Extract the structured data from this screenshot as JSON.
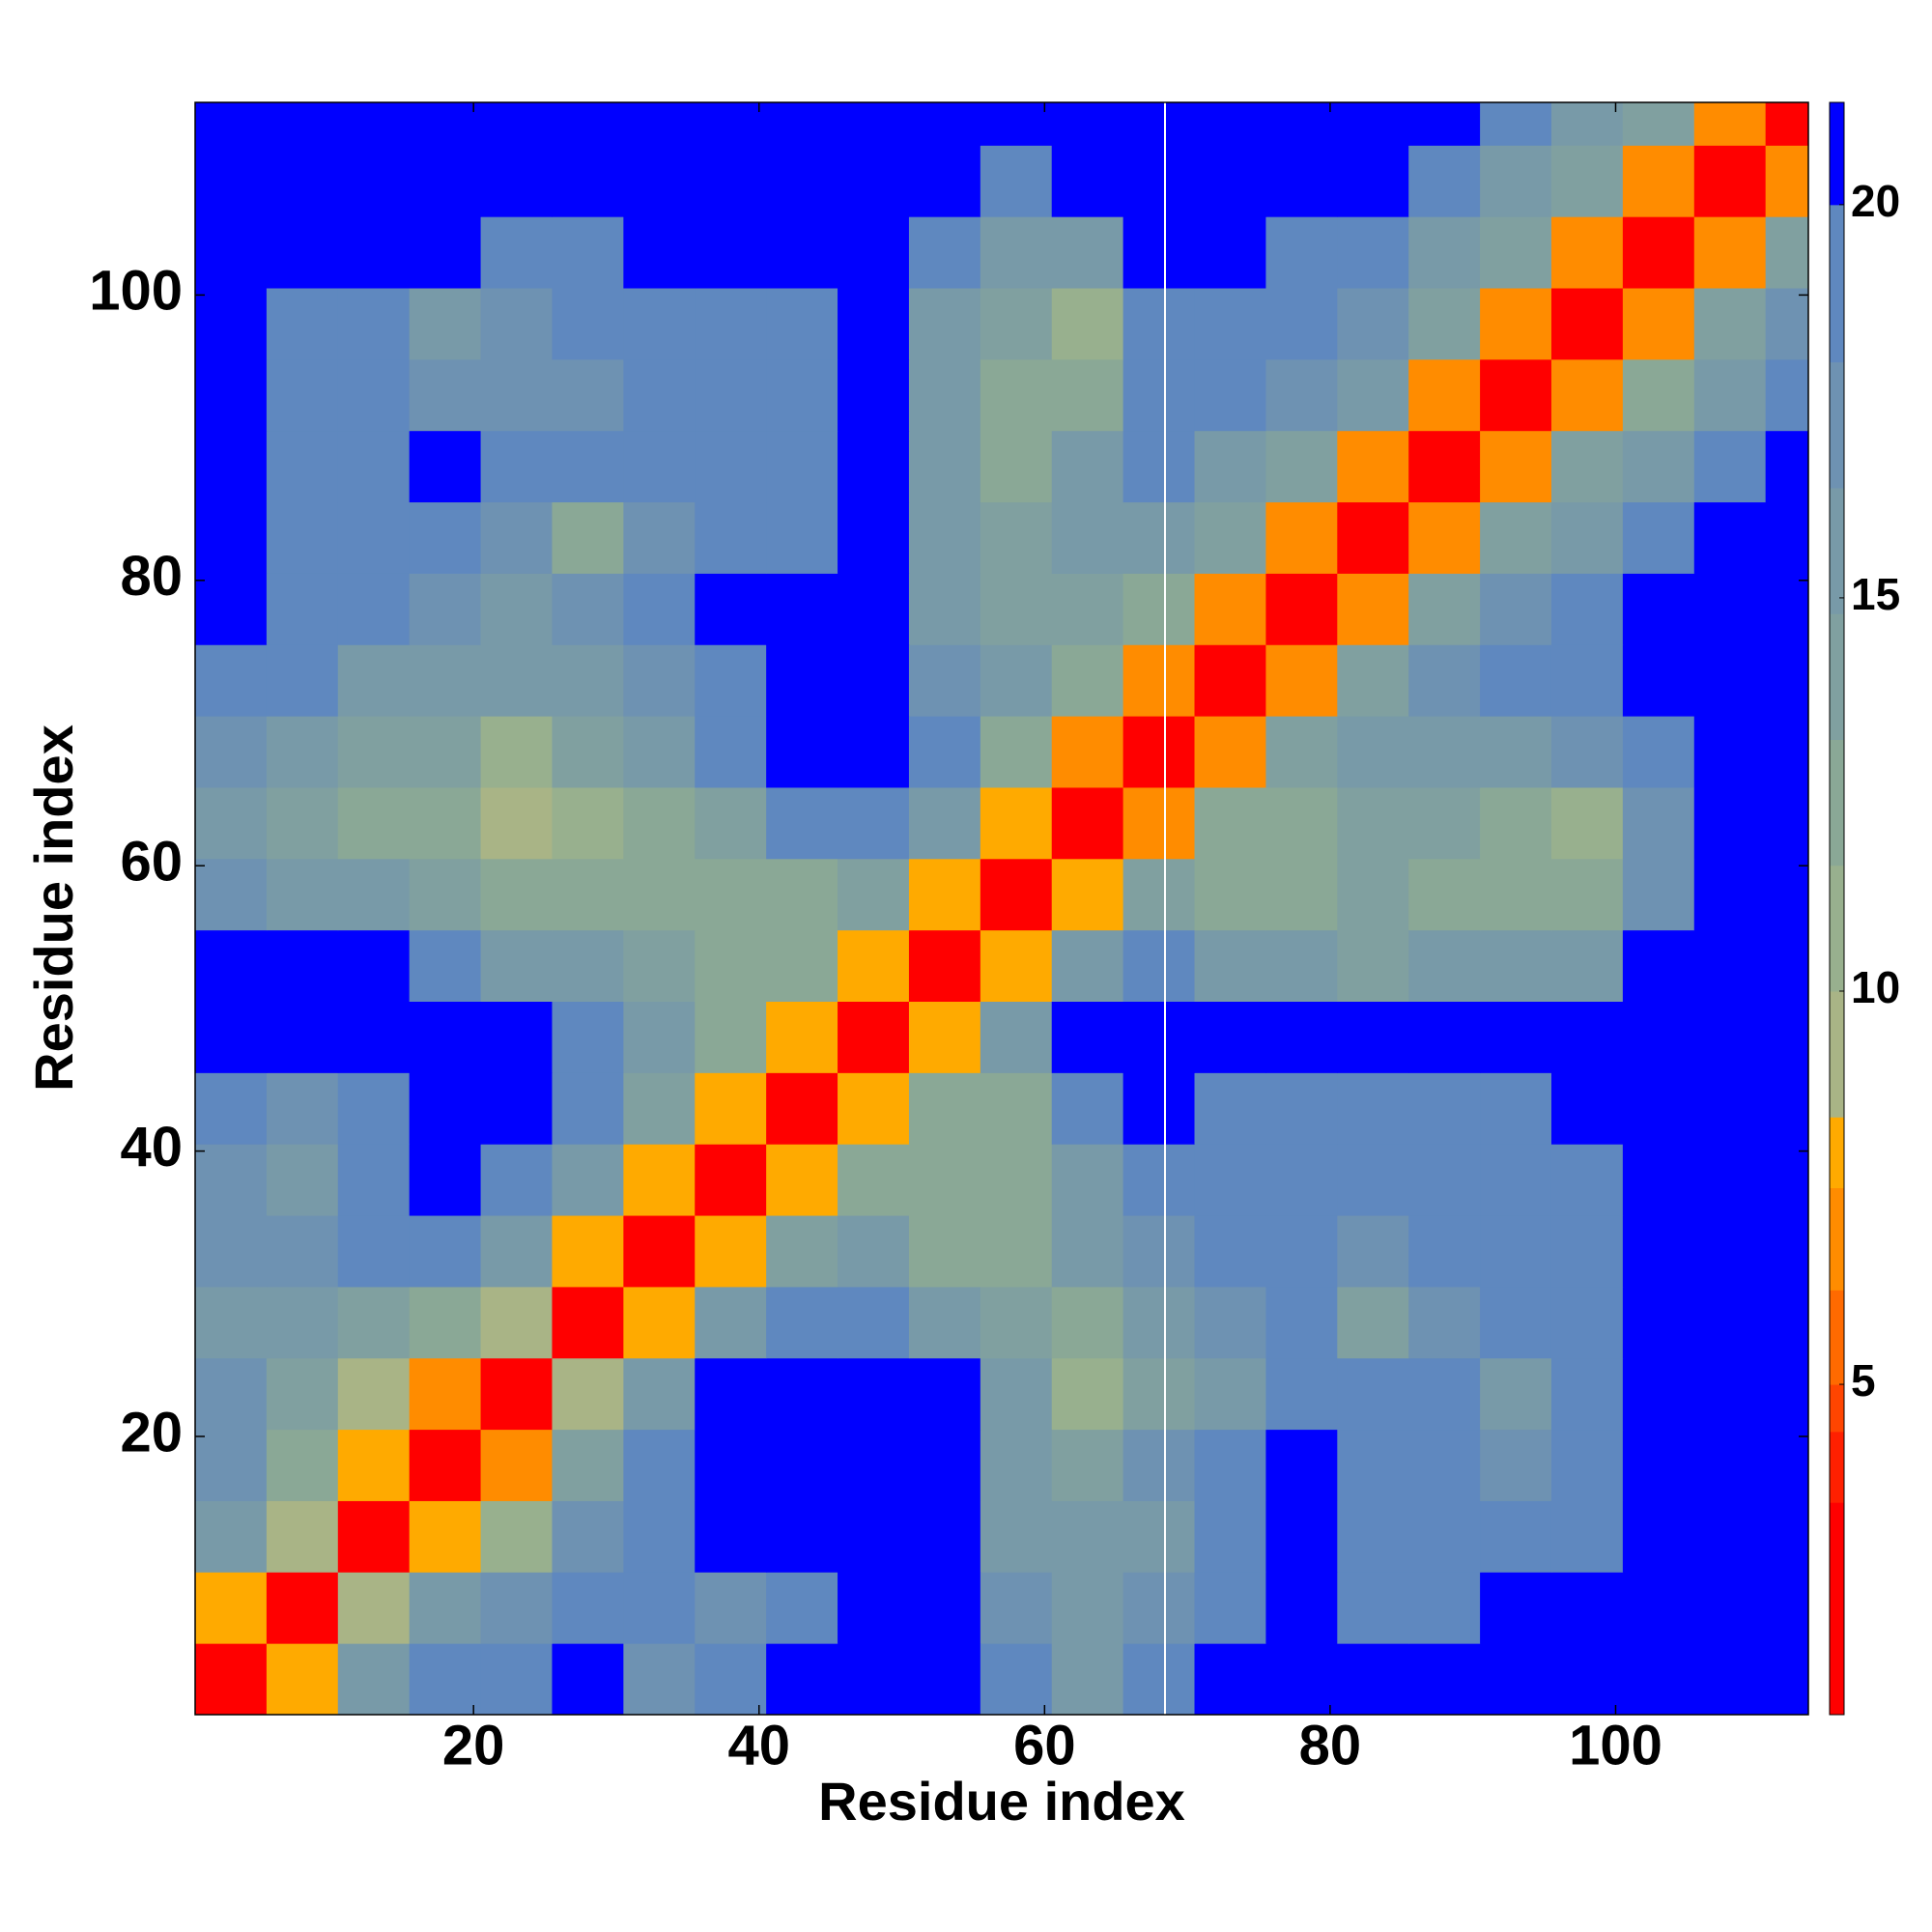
{
  "chart_data": {
    "type": "heatmap",
    "x_label": "Residue index",
    "y_label": "Residue index",
    "xlim": [
      0.5,
      113.5
    ],
    "ylim": [
      0.5,
      113.5
    ],
    "xticks": [
      20,
      40,
      60,
      80,
      100
    ],
    "yticks": [
      20,
      40,
      60,
      80,
      100
    ],
    "xbins": [
      0.5,
      5.5,
      10.5,
      15.5,
      20.5,
      25.5,
      30.5,
      35.5,
      40.5,
      45.5,
      50.5,
      55.5,
      60.5,
      65.5,
      70.5,
      75.5,
      80.5,
      85.5,
      90.5,
      95.5,
      100.5,
      105.5,
      110.5,
      113.5
    ],
    "ybins": [
      0.5,
      5.5,
      10.5,
      15.5,
      20.5,
      25.5,
      30.5,
      35.5,
      40.5,
      45.5,
      50.5,
      55.5,
      60.5,
      65.5,
      70.5,
      75.5,
      80.5,
      85.5,
      90.5,
      95.5,
      100.5,
      105.5,
      110.5,
      113.5
    ],
    "z": [
      [
        2,
        8,
        16,
        18,
        19,
        21,
        17,
        18,
        21,
        21,
        21,
        18,
        16,
        18,
        21,
        21,
        21,
        21,
        21,
        21,
        21,
        21,
        21
      ],
      [
        8,
        3,
        9,
        15,
        17,
        18,
        18,
        17,
        19,
        21,
        21,
        17,
        15,
        17,
        19,
        21,
        19,
        19,
        21,
        21,
        21,
        21,
        21
      ],
      [
        15,
        9,
        3,
        8,
        10,
        17,
        19,
        21,
        21,
        21,
        21,
        16,
        15,
        16,
        18,
        21,
        19,
        18,
        19,
        19,
        21,
        21,
        21
      ],
      [
        17,
        12,
        8,
        2,
        7,
        14,
        19,
        21,
        21,
        21,
        21,
        16,
        14,
        17,
        18,
        21,
        19,
        19,
        17,
        18,
        21,
        21,
        21
      ],
      [
        17,
        14,
        9,
        7,
        2,
        9,
        16,
        21,
        21,
        21,
        21,
        15,
        10,
        14,
        16,
        18,
        19,
        18,
        16,
        18,
        21,
        21,
        21
      ],
      [
        16,
        16,
        14,
        13,
        9,
        3,
        8,
        15,
        19,
        18,
        16,
        14,
        12,
        15,
        17,
        18,
        14,
        17,
        18,
        19,
        21,
        21,
        21
      ],
      [
        17,
        17,
        18,
        18,
        16,
        8,
        3,
        8,
        14,
        15,
        12,
        12,
        16,
        17,
        18,
        18,
        17,
        18,
        18,
        19,
        21,
        21,
        21
      ],
      [
        17,
        16,
        18,
        21,
        19,
        15,
        8,
        3,
        8,
        12,
        12,
        12,
        16,
        19,
        18,
        18,
        18,
        18,
        18,
        19,
        21,
        21,
        21
      ],
      [
        18,
        17,
        18,
        21,
        21,
        18,
        14,
        8,
        2,
        8,
        12,
        13,
        18,
        21,
        19,
        19,
        19,
        19,
        19,
        21,
        21,
        21,
        21
      ],
      [
        21,
        21,
        21,
        21,
        21,
        19,
        15,
        12,
        8,
        2,
        8,
        15,
        21,
        21,
        21,
        21,
        21,
        21,
        21,
        21,
        21,
        21,
        21
      ],
      [
        21,
        21,
        21,
        19,
        16,
        16,
        14,
        12,
        12,
        8,
        2,
        8,
        15,
        19,
        16,
        15,
        14,
        16,
        15,
        16,
        21,
        21,
        21
      ],
      [
        17,
        16,
        15,
        14,
        12,
        12,
        12,
        12,
        13,
        14,
        8,
        2,
        8,
        14,
        13,
        13,
        14,
        13,
        12,
        13,
        17,
        21,
        21
      ],
      [
        16,
        14,
        12,
        12,
        9,
        10,
        13,
        14,
        18,
        19,
        15,
        8,
        2,
        7,
        13,
        13,
        14,
        14,
        13,
        11,
        17,
        21,
        21
      ],
      [
        17,
        16,
        14,
        14,
        10,
        14,
        15,
        18,
        21,
        21,
        18,
        13,
        7,
        2,
        7,
        14,
        16,
        16,
        16,
        17,
        19,
        21,
        21
      ],
      [
        19,
        18,
        16,
        15,
        15,
        16,
        17,
        19,
        21,
        21,
        17,
        15,
        12,
        7,
        2,
        7,
        14,
        17,
        18,
        19,
        21,
        21,
        21
      ],
      [
        21,
        19,
        18,
        17,
        16,
        17,
        18,
        21,
        21,
        21,
        16,
        14,
        14,
        13,
        7,
        2,
        7,
        14,
        17,
        18,
        21,
        21,
        21
      ],
      [
        21,
        19,
        18,
        18,
        17,
        13,
        17,
        18,
        19,
        21,
        16,
        14,
        15,
        16,
        14,
        7,
        2,
        7,
        14,
        16,
        18,
        21,
        21
      ],
      [
        21,
        18,
        19,
        21,
        18,
        18,
        19,
        18,
        19,
        21,
        15,
        13,
        15,
        18,
        16,
        14,
        7,
        2,
        7,
        14,
        16,
        19,
        21
      ],
      [
        21,
        19,
        18,
        17,
        17,
        17,
        18,
        18,
        19,
        21,
        15,
        13,
        13,
        18,
        19,
        17,
        15,
        7,
        2,
        7,
        13,
        16,
        19
      ],
      [
        21,
        19,
        18,
        15,
        17,
        18,
        18,
        19,
        19,
        21,
        16,
        14,
        11,
        19,
        19,
        18,
        17,
        14,
        7,
        2,
        7,
        14,
        17
      ],
      [
        21,
        21,
        21,
        21,
        19,
        19,
        21,
        21,
        21,
        21,
        18,
        15,
        16,
        21,
        21,
        19,
        18,
        16,
        14,
        7,
        2,
        7,
        14
      ],
      [
        21,
        21,
        21,
        21,
        21,
        21,
        21,
        21,
        21,
        21,
        21,
        18,
        21,
        21,
        21,
        21,
        21,
        18,
        16,
        14,
        7,
        2,
        7
      ],
      [
        21,
        21,
        21,
        21,
        21,
        21,
        21,
        21,
        21,
        21,
        21,
        21,
        21,
        21,
        21,
        21,
        21,
        21,
        19,
        16,
        14,
        7,
        2
      ]
    ],
    "colorbar_lim": [
      0.8,
      21.3
    ],
    "colorbar_ticks": [
      5,
      10,
      15,
      20
    ],
    "colorbar_bins": [
      0.8,
      3.5,
      4.4,
      5.0,
      6.2,
      7.5,
      8.4,
      10.0,
      11.6,
      13.2,
      14.8,
      16.4,
      18.0,
      20.0,
      21.3
    ],
    "colorbar_colors": [
      "#ff0000",
      "#ff2000",
      "#ff4500",
      "#ff6a00",
      "#ff8c00",
      "#ffaa00",
      "#a9b486",
      "#98b08e",
      "#8aa896",
      "#80a0a0",
      "#789aa8",
      "#6e92b2",
      "#5f88bf",
      "#0000ff"
    ]
  }
}
